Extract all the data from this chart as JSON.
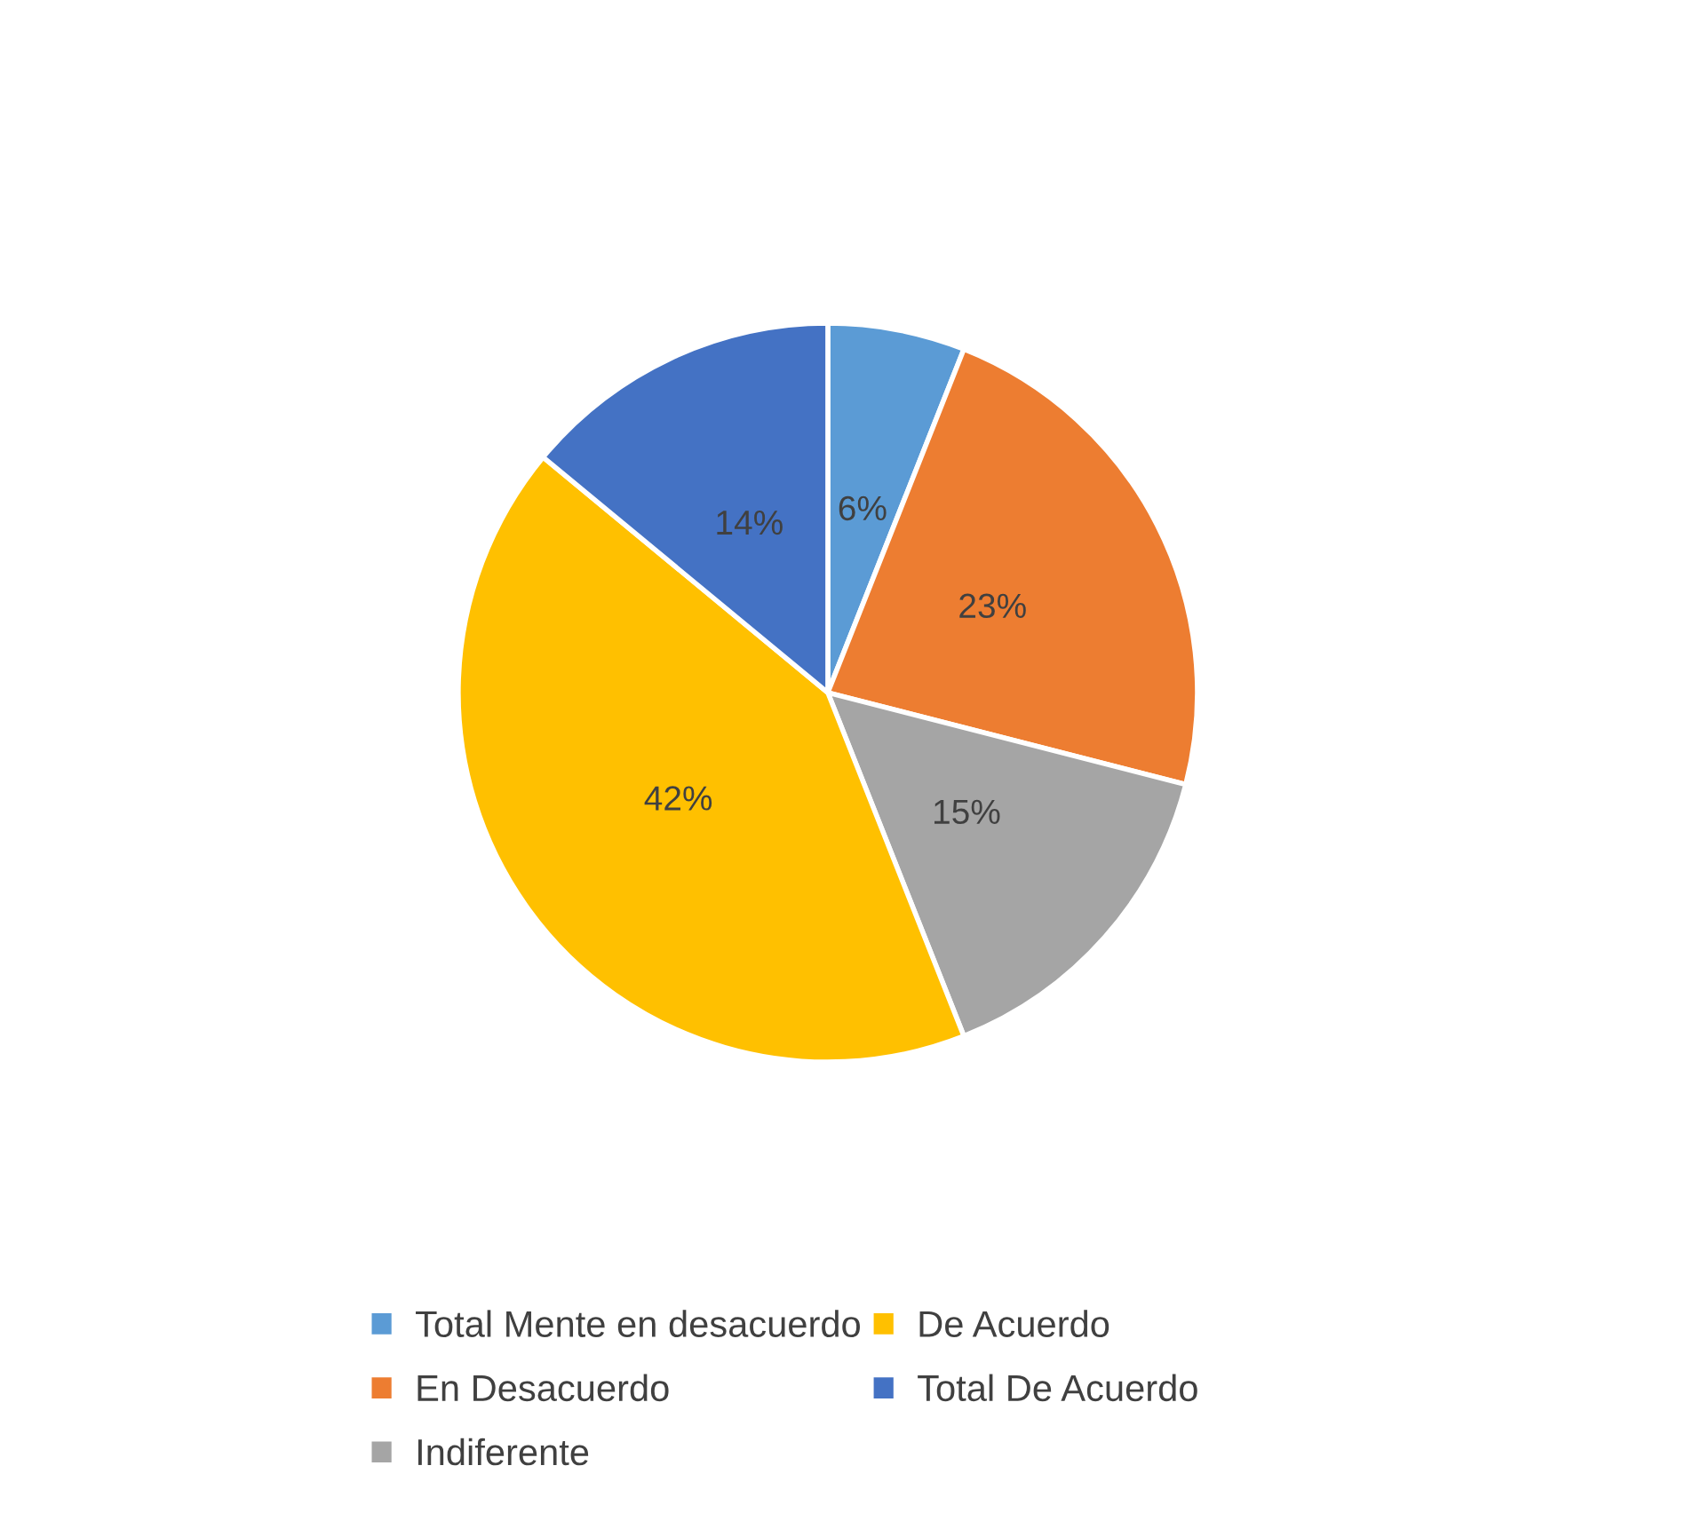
{
  "chart_data": {
    "type": "pie",
    "categories": [
      "Total Mente en desacuerdo",
      "En Desacuerdo",
      "Indiferente",
      "De Acuerdo",
      "Total De Acuerdo"
    ],
    "values": [
      6,
      23,
      15,
      42,
      14
    ],
    "colors": [
      "#5b9bd5",
      "#ed7d31",
      "#a5a5a5",
      "#ffc000",
      "#4472c4"
    ],
    "value_labels": [
      "6%",
      "23%",
      "15%",
      "42%",
      "14%"
    ],
    "legend": "bottom"
  }
}
